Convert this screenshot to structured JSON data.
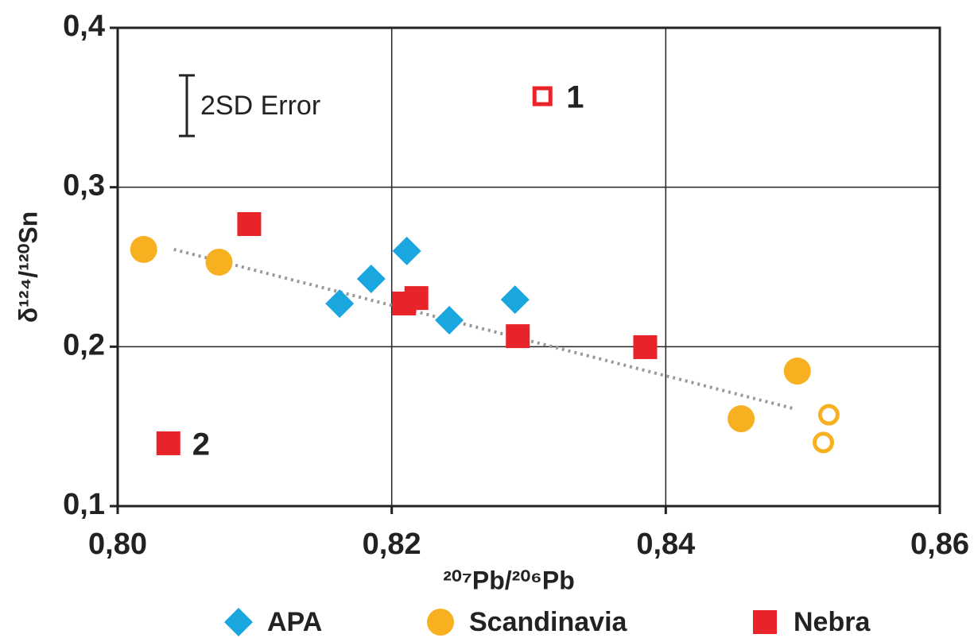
{
  "chart_data": {
    "type": "scatter",
    "xlabel": "²⁰⁷Pb/²⁰⁶Pb",
    "ylabel": "δ¹²⁴/¹²⁰Sn",
    "xlim": [
      0.8,
      0.86
    ],
    "ylim": [
      0.1,
      0.4
    ],
    "xticks": [
      {
        "value": 0.8,
        "label": "0,80"
      },
      {
        "value": 0.82,
        "label": "0,82"
      },
      {
        "value": 0.84,
        "label": "0,84"
      },
      {
        "value": 0.86,
        "label": "0,86"
      }
    ],
    "yticks": [
      {
        "value": 0.1,
        "label": "0,1"
      },
      {
        "value": 0.2,
        "label": "0,2"
      },
      {
        "value": 0.3,
        "label": "0,3"
      },
      {
        "value": 0.4,
        "label": "0,4"
      }
    ],
    "grid": true,
    "legend": "bottom",
    "series": [
      {
        "name": "APA",
        "color": "#1aa7e0",
        "marker": "diamond",
        "x": [
          0.8162,
          0.8185,
          0.8211,
          0.8242,
          0.829
        ],
        "values": [
          0.227,
          0.2425,
          0.26,
          0.2166,
          0.2295
        ],
        "filled": [
          true,
          true,
          true,
          true,
          true
        ]
      },
      {
        "name": "Scandinavia",
        "color": "#f7b120",
        "marker": "circle",
        "x": [
          0.8019,
          0.8074,
          0.8496,
          0.8455,
          0.8519,
          0.8515
        ],
        "values": [
          0.261,
          0.253,
          0.1847,
          0.1548,
          0.1573,
          0.1399
        ],
        "filled": [
          true,
          true,
          true,
          true,
          false,
          false
        ]
      },
      {
        "name": "Nebra",
        "color": "#e8232a",
        "marker": "square",
        "x": [
          0.8096,
          0.8209,
          0.8218,
          0.8292,
          0.8385,
          0.8037,
          0.831
        ],
        "values": [
          0.2769,
          0.2271,
          0.2305,
          0.2066,
          0.1997,
          0.1394,
          0.3571
        ],
        "filled": [
          true,
          true,
          true,
          true,
          true,
          true,
          false
        ],
        "point_labels": [
          null,
          null,
          null,
          null,
          null,
          "2",
          "1"
        ]
      }
    ],
    "trendline": {
      "x": [
        0.8041,
        0.8494
      ],
      "values": [
        0.261,
        0.161
      ],
      "color": "#999999"
    },
    "error_legend": {
      "label": "2SD Error",
      "size": 0.038
    }
  }
}
